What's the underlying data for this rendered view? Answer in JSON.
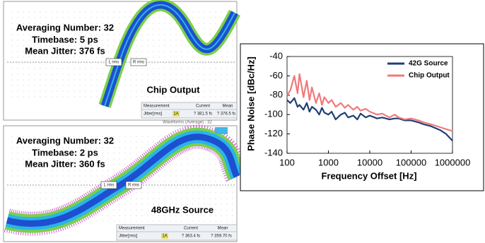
{
  "panels": [
    {
      "info": [
        "Averaging Number: 32",
        "Timebase: 5 ps",
        "Mean Jitter: 376 fs"
      ],
      "label": "Chip Output",
      "markers": [
        "L rms",
        "R rms"
      ],
      "table": {
        "header": [
          "Measurement",
          "Current",
          "Mean"
        ],
        "row": [
          "Jitter[rms]",
          "1A",
          "? 381.5 fs",
          "? 376.5 fs"
        ]
      }
    },
    {
      "info": [
        "Averaging Number: 32",
        "Timebase: 2 ps",
        "Mean Jitter: 360 fs"
      ],
      "label": "48GHz Source",
      "markers": [
        "L rms",
        "R rms"
      ],
      "table": {
        "header": [
          "Measurement",
          "Current",
          "Mean"
        ],
        "row": [
          "Jitter[rms]",
          "1A",
          "? 363.4 fs",
          "? 359.70 fs"
        ]
      }
    }
  ],
  "caption": "Waveforms (Average) : 32",
  "chart_data": {
    "type": "line",
    "xlabel": "Frequency Offset [Hz]",
    "ylabel": "Phase Noise [dBc/Hz]",
    "xscale": "log",
    "xlim": [
      100,
      1000000
    ],
    "xticks": [
      100,
      1000,
      10000,
      100000,
      1000000
    ],
    "ylim": [
      -140,
      -40
    ],
    "yticks": [
      -140,
      -120,
      -100,
      -80,
      -60,
      -40
    ],
    "legend": "upper right",
    "x": [
      100,
      120,
      150,
      180,
      200,
      250,
      300,
      350,
      400,
      500,
      600,
      700,
      800,
      1000,
      1200,
      1500,
      2000,
      2500,
      3000,
      4000,
      5000,
      6000,
      8000,
      10000,
      15000,
      20000,
      30000,
      40000,
      50000,
      70000,
      100000,
      150000,
      200000,
      300000,
      500000,
      700000,
      1000000
    ],
    "series": [
      {
        "name": "42G Source",
        "color": "#1f3e74",
        "values": [
          -85,
          -88,
          -83,
          -92,
          -90,
          -95,
          -88,
          -97,
          -92,
          -95,
          -100,
          -93,
          -98,
          -100,
          -97,
          -105,
          -100,
          -98,
          -103,
          -101,
          -105,
          -99,
          -103,
          -101,
          -104,
          -103,
          -105,
          -104,
          -104,
          -106,
          -106,
          -108,
          -110,
          -112,
          -116,
          -120,
          -127
        ]
      },
      {
        "name": "Chip Output",
        "color": "#f07a7a",
        "values": [
          -80,
          -75,
          -60,
          -78,
          -58,
          -82,
          -65,
          -85,
          -72,
          -88,
          -78,
          -90,
          -82,
          -88,
          -85,
          -92,
          -88,
          -93,
          -90,
          -95,
          -92,
          -96,
          -94,
          -97,
          -100,
          -99,
          -103,
          -100,
          -103,
          -105,
          -104,
          -106,
          -108,
          -110,
          -113,
          -115,
          -117
        ]
      }
    ]
  }
}
